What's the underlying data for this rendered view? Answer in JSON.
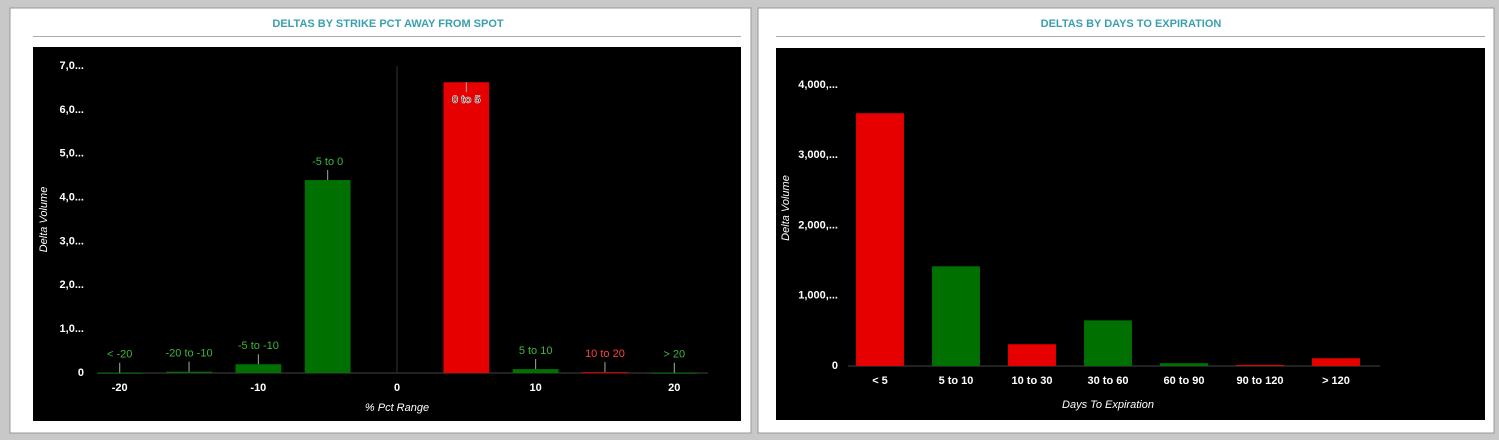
{
  "chart_data": [
    {
      "type": "bar",
      "title": "DELTAS BY STRIKE PCT AWAY FROM SPOT",
      "x_label": "% Pct Range",
      "y_label": "Delta Volume",
      "categories": [
        "< -20",
        "-20 to -10",
        "-5 to -10",
        "-5 to 0",
        "0 to 5",
        "5 to 10",
        "10 to 20",
        "> 20"
      ],
      "x": [
        -20,
        -15,
        -10,
        -5,
        5,
        10,
        15,
        20
      ],
      "values": [
        5,
        30,
        200,
        4400,
        6630,
        90,
        20,
        5
      ],
      "colors": [
        "#007000",
        "#007000",
        "#007000",
        "#007000",
        "#e60000",
        "#007000",
        "#e60000",
        "#007000"
      ],
      "xlim": [
        -22,
        22
      ],
      "xticks": [
        -20,
        -10,
        0,
        10,
        20
      ],
      "ylim": [
        0,
        7000
      ],
      "yticks": [
        0,
        {
          "value": 1000,
          "label": "1,0..."
        },
        {
          "value": 2000,
          "label": "2,0..."
        },
        {
          "value": 3000,
          "label": "3,0..."
        },
        {
          "value": 4000,
          "label": "4,0..."
        },
        {
          "value": 5000,
          "label": "5,0..."
        },
        {
          "value": 6000,
          "label": "6,0..."
        },
        {
          "value": 7000,
          "label": "7,0..."
        }
      ],
      "data_labels": true
    },
    {
      "type": "bar",
      "title": "DELTAS BY DAYS TO EXPIRATION",
      "x_label": "Days To Expiration",
      "y_label": "Delta Volume",
      "categories": [
        "< 5",
        "5 to 10",
        "10 to 30",
        "30 to 60",
        "60 to 90",
        "90 to 120",
        "> 120"
      ],
      "values": [
        3600,
        1420,
        310,
        650,
        40,
        15,
        110
      ],
      "colors": [
        "#e60000",
        "#007000",
        "#e60000",
        "#007000",
        "#007000",
        "#e60000",
        "#e60000"
      ],
      "ylim": [
        0,
        4500
      ],
      "yticks": [
        0,
        {
          "value": 1000,
          "label": "1,000,..."
        },
        {
          "value": 2000,
          "label": "2,000,..."
        },
        {
          "value": 3000,
          "label": "3,000,..."
        },
        {
          "value": 4000,
          "label": "4,000,..."
        }
      ],
      "data_labels": false
    }
  ]
}
